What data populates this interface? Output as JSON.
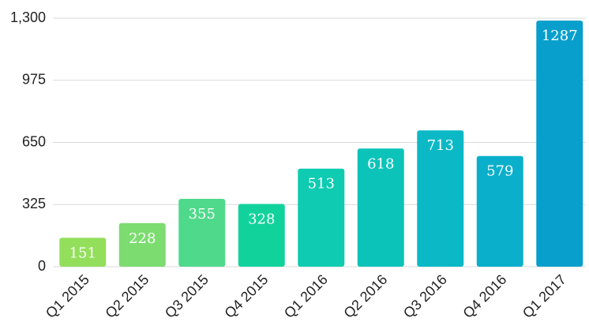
{
  "chart_data": {
    "type": "bar",
    "categories": [
      "Q1 2015",
      "Q2 2015",
      "Q3 2015",
      "Q4 2015",
      "Q1 2016",
      "Q2 2016",
      "Q3 2016",
      "Q4 2016",
      "Q1 2017"
    ],
    "values": [
      151,
      228,
      355,
      328,
      513,
      618,
      713,
      579,
      1287
    ],
    "colors": [
      "#93df5b",
      "#7cdc70",
      "#4fd98b",
      "#12d29b",
      "#0ecbb1",
      "#0cc3b9",
      "#0bb9c6",
      "#0aafcb",
      "#089fcc"
    ],
    "ylim": [
      0,
      1300
    ],
    "yticks": [
      0,
      325,
      650,
      975,
      {
        "value": 1300,
        "label": "1,300"
      }
    ],
    "grid": true
  }
}
